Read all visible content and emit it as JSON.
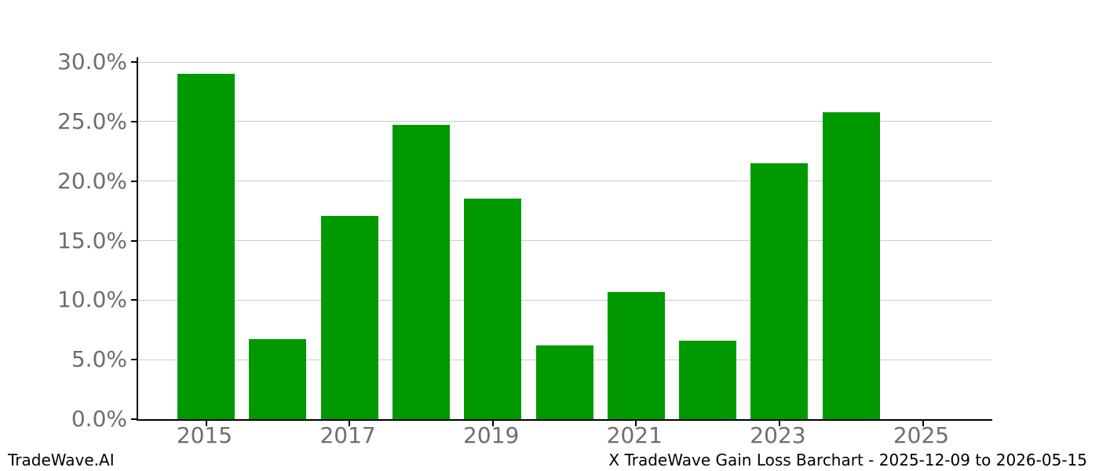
{
  "chart_data": {
    "type": "bar",
    "title": "X TradeWave Gain Loss Barchart - 2025-12-09 to 2026-05-15",
    "categories": [
      "2015",
      "2016",
      "2017",
      "2018",
      "2019",
      "2020",
      "2021",
      "2022",
      "2023",
      "2024",
      "2025"
    ],
    "values": [
      29.0,
      6.7,
      17.1,
      24.7,
      18.5,
      6.2,
      10.7,
      6.6,
      21.5,
      25.8,
      null
    ],
    "xlabel": "",
    "ylabel": "",
    "xtick_labels": [
      "2015",
      "2017",
      "2019",
      "2021",
      "2023",
      "2025"
    ],
    "xtick_indices": [
      0,
      2,
      4,
      6,
      8,
      10
    ],
    "ytick_labels": [
      "0.0%",
      "5.0%",
      "10.0%",
      "15.0%",
      "20.0%",
      "25.0%",
      "30.0%"
    ],
    "ytick_values": [
      0,
      5,
      10,
      15,
      20,
      25,
      30
    ],
    "ylim": [
      0,
      30.4
    ],
    "grid": "horizontal",
    "legend": "none",
    "bar_color": "#009900"
  },
  "colors": {
    "bar": "#009900",
    "grid": "#cccccc",
    "axis": "#000000",
    "tick_label": "#6e6e6e",
    "text": "#000000",
    "background": "#ffffff"
  },
  "footer": {
    "brand": "TradeWave.AI",
    "title": "X TradeWave Gain Loss Barchart - 2025-12-09 to 2026-05-15"
  }
}
